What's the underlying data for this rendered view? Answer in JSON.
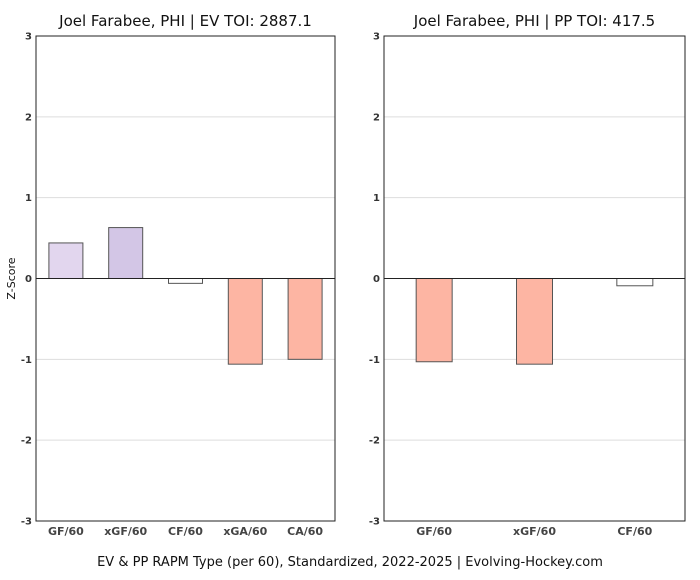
{
  "caption": "EV & PP RAPM Type (per 60), Standardized, 2022-2025    |    Evolving-Hockey.com",
  "chart_data": [
    {
      "type": "bar",
      "title": "Joel Farabee, PHI  |  EV TOI: 2887.1",
      "ylabel": "Z-Score",
      "xlabel": "",
      "ylim": [
        -3,
        3
      ],
      "yticks": [
        -3,
        -2,
        -1,
        0,
        1,
        2,
        3
      ],
      "grid": true,
      "categories": [
        "GF/60",
        "xGF/60",
        "CF/60",
        "xGA/60",
        "CA/60"
      ],
      "values": [
        0.44,
        0.63,
        -0.06,
        -1.06,
        -1.0
      ],
      "colors": [
        "#e2d6ee",
        "#d3c6e6",
        "#ffffff",
        "#fdb5a3",
        "#fdb5a3"
      ]
    },
    {
      "type": "bar",
      "title": "Joel Farabee, PHI  |  PP TOI: 417.5",
      "ylabel": "",
      "xlabel": "",
      "ylim": [
        -3,
        3
      ],
      "yticks": [
        -3,
        -2,
        -1,
        0,
        1,
        2,
        3
      ],
      "grid": true,
      "categories": [
        "GF/60",
        "xGF/60",
        "CF/60"
      ],
      "values": [
        -1.03,
        -1.06,
        -0.09
      ],
      "colors": [
        "#fdb5a3",
        "#fdb5a3",
        "#ffffff"
      ]
    }
  ]
}
